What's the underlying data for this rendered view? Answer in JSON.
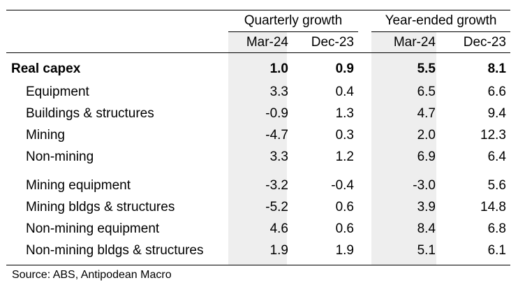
{
  "table": {
    "groups": [
      "Quarterly growth",
      "Year-ended growth"
    ],
    "columns": [
      "Mar-24",
      "Dec-23",
      "Mar-24",
      "Dec-23"
    ],
    "rows": [
      {
        "label": "Real capex",
        "values": [
          "1.0",
          "0.9",
          "5.5",
          "8.1"
        ],
        "bold": true
      },
      {
        "label": "Equipment",
        "values": [
          "3.3",
          "0.4",
          "6.5",
          "6.6"
        ]
      },
      {
        "label": "Buildings & structures",
        "values": [
          "-0.9",
          "1.3",
          "4.7",
          "9.4"
        ]
      },
      {
        "label": "Mining",
        "values": [
          "-4.7",
          "0.3",
          "2.0",
          "12.3"
        ]
      },
      {
        "label": "Non-mining",
        "values": [
          "3.3",
          "1.2",
          "6.9",
          "6.4"
        ]
      },
      {
        "label": "Mining equipment",
        "values": [
          "-3.2",
          "-0.4",
          "-3.0",
          "5.6"
        ]
      },
      {
        "label": "Mining bldgs & structures",
        "values": [
          "-5.2",
          "0.6",
          "3.9",
          "14.8"
        ]
      },
      {
        "label": "Non-mining equipment",
        "values": [
          "4.6",
          "0.6",
          "8.4",
          "6.8"
        ]
      },
      {
        "label": "Non-mining bldgs & structures",
        "values": [
          "1.9",
          "1.9",
          "5.1",
          "6.1"
        ]
      }
    ]
  },
  "source": "Source: ABS, Antipodean Macro"
}
